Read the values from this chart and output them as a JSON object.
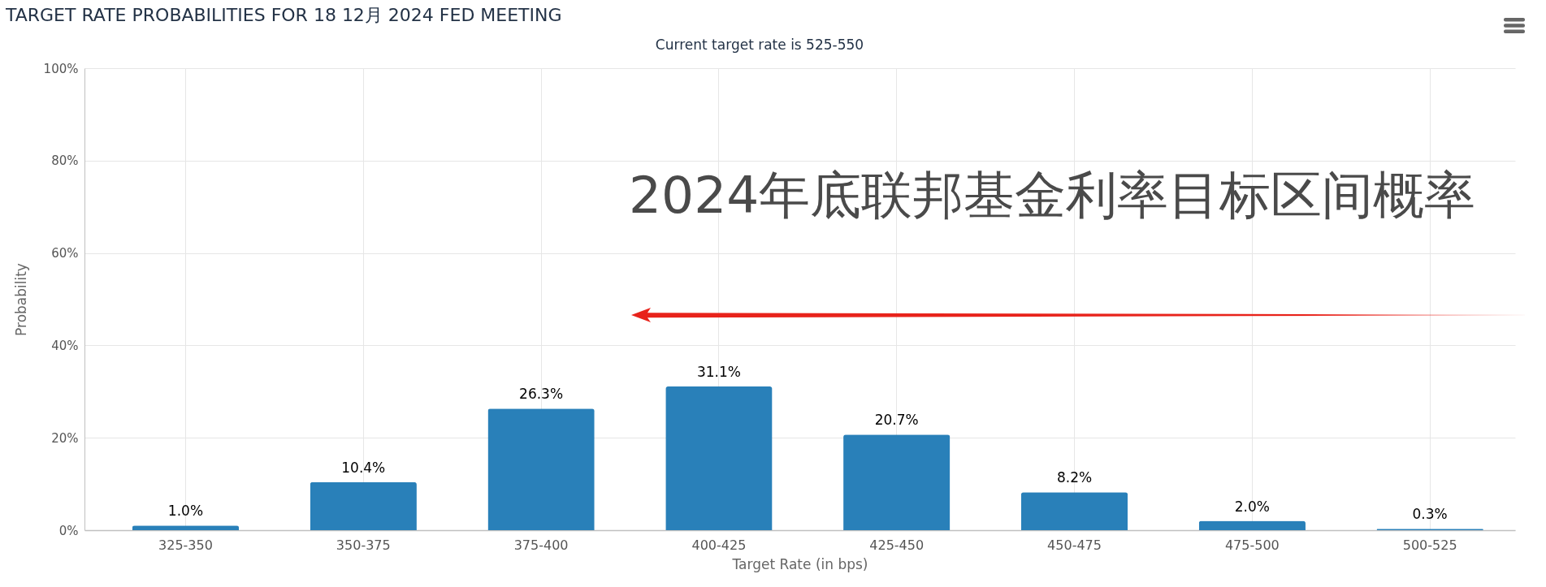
{
  "chart_data": {
    "type": "bar",
    "title": "TARGET RATE PROBABILITIES FOR 18 12月 2024 FED MEETING",
    "subtitle": "Current target rate is 525-550",
    "xlabel": "Target Rate (in bps)",
    "ylabel": "Probability",
    "categories": [
      "325-350",
      "350-375",
      "375-400",
      "400-425",
      "425-450",
      "450-475",
      "475-500",
      "500-525"
    ],
    "values": [
      1.0,
      10.4,
      26.3,
      31.1,
      20.7,
      8.2,
      2.0,
      0.3
    ],
    "value_labels": [
      "1.0%",
      "10.4%",
      "26.3%",
      "31.1%",
      "20.7%",
      "8.2%",
      "2.0%",
      "0.3%"
    ],
    "color": "#2980b9",
    "ylim": [
      0,
      100
    ],
    "yticks": [
      {
        "value": 0,
        "label": "0%"
      },
      {
        "value": 20,
        "label": "20%"
      },
      {
        "value": 40,
        "label": "40%"
      },
      {
        "value": 60,
        "label": "60%"
      },
      {
        "value": 80,
        "label": "80%"
      },
      {
        "value": 100,
        "label": "100%"
      }
    ],
    "grid": true,
    "annotations": [
      "2024年底联邦基金利率目标区间概率"
    ]
  }
}
